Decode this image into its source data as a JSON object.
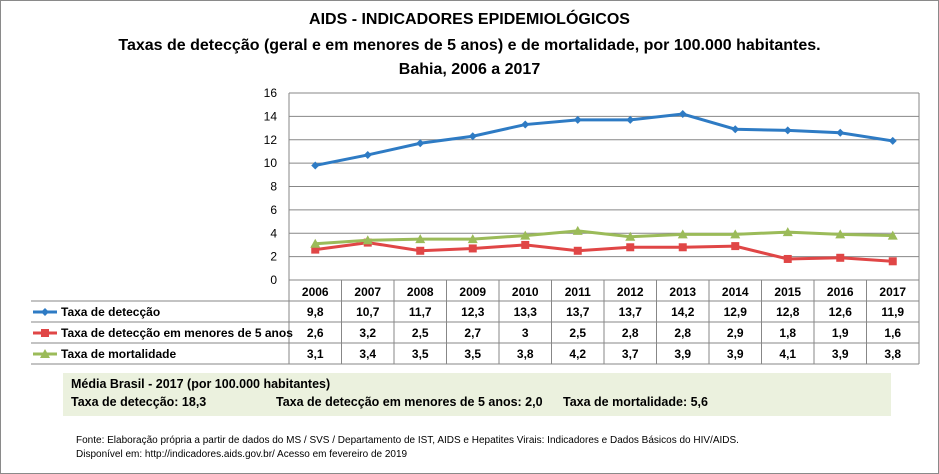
{
  "title": [
    "AIDS - INDICADORES EPIDEMIOLÓGICOS",
    "Taxas de detecção (geral e em menores de 5 anos) e de mortalidade, por 100.000 habitantes.",
    "Bahia, 2006 a 2017"
  ],
  "chart_data": {
    "type": "line",
    "categories": [
      "2006",
      "2007",
      "2008",
      "2009",
      "2010",
      "2011",
      "2012",
      "2013",
      "2014",
      "2015",
      "2016",
      "2017"
    ],
    "ylim": [
      0,
      16
    ],
    "yticks": [
      0,
      2,
      4,
      6,
      8,
      10,
      12,
      14,
      16
    ],
    "grid": true,
    "legend": "data-table",
    "series": [
      {
        "name": "Taxa de detecção",
        "color": "#2e7bc4",
        "marker": "diamond",
        "values": [
          9.8,
          10.7,
          11.7,
          12.3,
          13.3,
          13.7,
          13.7,
          14.2,
          12.9,
          12.8,
          12.6,
          11.9
        ],
        "labels": [
          "9,8",
          "10,7",
          "11,7",
          "12,3",
          "13,3",
          "13,7",
          "13,7",
          "14,2",
          "12,9",
          "12,8",
          "12,6",
          "11,9"
        ]
      },
      {
        "name": "Taxa de detecção em menores de 5 anos",
        "color": "#e04646",
        "marker": "square",
        "values": [
          2.6,
          3.2,
          2.5,
          2.7,
          3,
          2.5,
          2.8,
          2.8,
          2.9,
          1.8,
          1.9,
          1.6
        ],
        "labels": [
          "2,6",
          "3,2",
          "2,5",
          "2,7",
          "3",
          "2,5",
          "2,8",
          "2,8",
          "2,9",
          "1,8",
          "1,9",
          "1,6"
        ]
      },
      {
        "name": "Taxa de mortalidade",
        "color": "#9bbb59",
        "marker": "triangle",
        "values": [
          3.1,
          3.4,
          3.5,
          3.5,
          3.8,
          4.2,
          3.7,
          3.9,
          3.9,
          4.1,
          3.9,
          3.8
        ],
        "labels": [
          "3,1",
          "3,4",
          "3,5",
          "3,5",
          "3,8",
          "4,2",
          "3,7",
          "3,9",
          "3,9",
          "4,1",
          "3,9",
          "3,8"
        ]
      }
    ]
  },
  "brazil": {
    "heading": "Média Brasil - 2017  (por 100.000 habitantes)",
    "detect": "Taxa de detecção: 18,3",
    "under5": "Taxa de detecção em menores de 5 anos: 2,0",
    "mort": "Taxa de mortalidade: 5,6"
  },
  "source": [
    "Fonte: Elaboração própria a partir de dados do MS / SVS / Departamento de IST, AIDS e Hepatites Virais: Indicadores e Dados Básicos do HIV/AIDS.",
    "Disponível em: http://indicadores.aids.gov.br/   Acesso em fevereiro de 2019"
  ]
}
